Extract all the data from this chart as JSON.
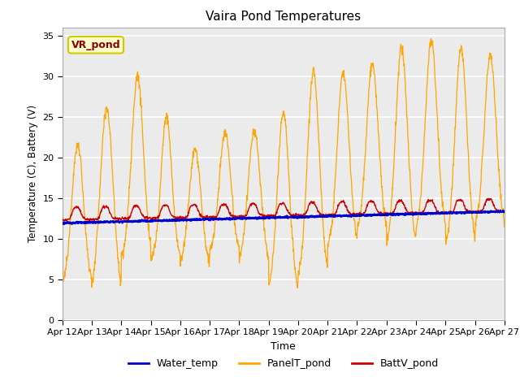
{
  "title": "Vaira Pond Temperatures",
  "xlabel": "Time",
  "ylabel": "Temperature (C), Battery (V)",
  "annotation_text": "VR_pond",
  "annotation_color": "#8B0000",
  "annotation_bg": "#FFFFCC",
  "annotation_edge": "#CCCC00",
  "ylim": [
    0,
    36
  ],
  "yticks": [
    0,
    5,
    10,
    15,
    20,
    25,
    30,
    35
  ],
  "date_labels": [
    "Apr 12",
    "Apr 13",
    "Apr 14",
    "Apr 15",
    "Apr 16",
    "Apr 17",
    "Apr 18",
    "Apr 19",
    "Apr 20",
    "Apr 21",
    "Apr 22",
    "Apr 23",
    "Apr 24",
    "Apr 25",
    "Apr 26",
    "Apr 27"
  ],
  "water_temp_color": "#0000CC",
  "panel_temp_color": "#FFA500",
  "batt_color": "#CC0000",
  "legend_labels": [
    "Water_temp",
    "PanelT_pond",
    "BattV_pond"
  ],
  "bg_color": "#EBEBEB",
  "grid_color": "#FFFFFF",
  "spine_color": "#AAAAAA"
}
